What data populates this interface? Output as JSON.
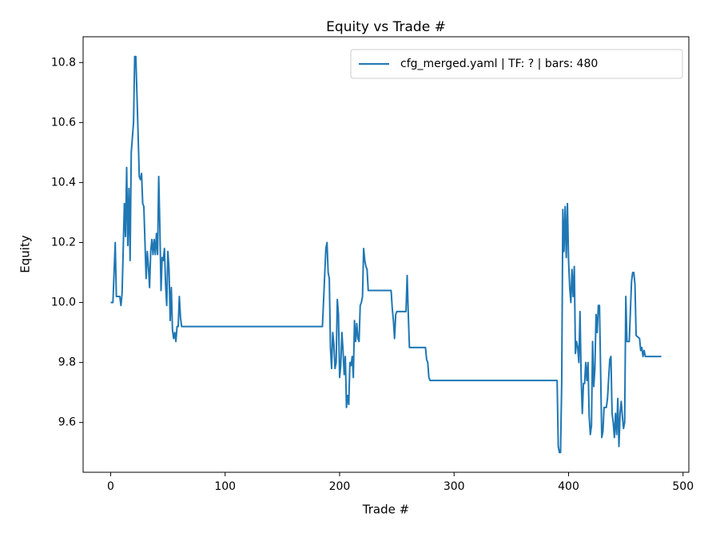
{
  "chart_data": {
    "type": "line",
    "title": "Equity vs Trade #",
    "xlabel": "Trade #",
    "ylabel": "Equity",
    "xlim": [
      -24.05,
      505.05
    ],
    "ylim": [
      9.434,
      10.886
    ],
    "xticks": [
      0,
      100,
      200,
      300,
      400,
      500
    ],
    "yticks": [
      9.6,
      9.8,
      {
        "value": 10,
        "label": "10.0"
      },
      10.2,
      10.4,
      10.6,
      10.8
    ],
    "legend": "upper right",
    "x": [
      0,
      2,
      4,
      5,
      8,
      9,
      10,
      12,
      13,
      14,
      15,
      16,
      17,
      18,
      20,
      21,
      22,
      24,
      25,
      26,
      27,
      28,
      29,
      30,
      31,
      32,
      33,
      34,
      35,
      36,
      37,
      38,
      39,
      40,
      41,
      42,
      43,
      44,
      45,
      46,
      47,
      48,
      49,
      50,
      51,
      52,
      53,
      54,
      55,
      56,
      57,
      58,
      59,
      60,
      61,
      62,
      185,
      188,
      189,
      190,
      191,
      192,
      193,
      194,
      195,
      196,
      197,
      198,
      199,
      200,
      201,
      202,
      203,
      204,
      205,
      206,
      207,
      208,
      209,
      210,
      211,
      212,
      213,
      214,
      215,
      216,
      217,
      218,
      219,
      220,
      221,
      222,
      223,
      224,
      225,
      245,
      246,
      247,
      248,
      249,
      250,
      258,
      259,
      260,
      261,
      275,
      276,
      277,
      278,
      279,
      390,
      391,
      392,
      393,
      394,
      395,
      396,
      397,
      398,
      399,
      400,
      401,
      402,
      403,
      404,
      405,
      406,
      407,
      408,
      409,
      410,
      411,
      412,
      413,
      414,
      415,
      416,
      417,
      418,
      419,
      420,
      421,
      422,
      423,
      424,
      425,
      426,
      427,
      428,
      429,
      430,
      431,
      432,
      433,
      434,
      436,
      437,
      438,
      439,
      440,
      441,
      442,
      443,
      444,
      445,
      446,
      447,
      448,
      449,
      450,
      451,
      453,
      455,
      456,
      457,
      458,
      459,
      462,
      463,
      464,
      465,
      466,
      467,
      481
    ],
    "series": [
      {
        "name": "cfg_merged.yaml | TF: ? | bars: 480",
        "color": "#1f77b4",
        "values": [
          10.0,
          10.0,
          10.2,
          10.02,
          10.02,
          9.99,
          10.03,
          10.33,
          10.22,
          10.45,
          10.19,
          10.38,
          10.14,
          10.5,
          10.6,
          10.82,
          10.82,
          10.56,
          10.42,
          10.41,
          10.43,
          10.33,
          10.32,
          10.2,
          10.08,
          10.17,
          10.12,
          10.05,
          10.17,
          10.21,
          10.16,
          10.21,
          10.16,
          10.23,
          10.16,
          10.42,
          10.25,
          10.04,
          10.15,
          10.14,
          10.18,
          10.06,
          9.99,
          10.17,
          10.11,
          9.94,
          10.05,
          9.91,
          9.88,
          9.9,
          9.87,
          9.92,
          9.92,
          10.02,
          9.95,
          9.92,
          9.92,
          10.18,
          10.2,
          10.1,
          10.08,
          9.85,
          9.78,
          9.9,
          9.86,
          9.78,
          9.8,
          10.01,
          9.96,
          9.75,
          9.79,
          9.9,
          9.84,
          9.76,
          9.82,
          9.65,
          9.69,
          9.66,
          9.8,
          9.79,
          9.82,
          9.75,
          9.94,
          9.87,
          9.93,
          9.88,
          9.87,
          9.99,
          10.0,
          10.02,
          10.18,
          10.14,
          10.12,
          10.11,
          10.04,
          10.04,
          9.98,
          9.94,
          9.88,
          9.96,
          9.97,
          9.97,
          10.09,
          9.96,
          9.85,
          9.85,
          9.81,
          9.8,
          9.75,
          9.74,
          9.74,
          9.52,
          9.5,
          9.5,
          9.73,
          10.31,
          10.17,
          10.32,
          10.15,
          10.33,
          10.14,
          10.05,
          10.0,
          10.11,
          10.02,
          10.12,
          9.83,
          9.87,
          9.85,
          9.8,
          9.97,
          9.75,
          9.63,
          9.73,
          9.73,
          9.8,
          9.74,
          9.8,
          9.62,
          9.56,
          9.59,
          9.87,
          9.72,
          9.78,
          9.96,
          9.9,
          9.99,
          9.99,
          9.77,
          9.55,
          9.57,
          9.65,
          9.65,
          9.65,
          9.68,
          9.81,
          9.82,
          9.63,
          9.6,
          9.55,
          9.63,
          9.56,
          9.68,
          9.52,
          9.63,
          9.67,
          9.62,
          9.58,
          9.6,
          10.02,
          9.87,
          9.87,
          10.07,
          10.1,
          10.1,
          10.06,
          9.89,
          9.88,
          9.84,
          9.85,
          9.82,
          9.84,
          9.82,
          9.82
        ]
      }
    ]
  }
}
